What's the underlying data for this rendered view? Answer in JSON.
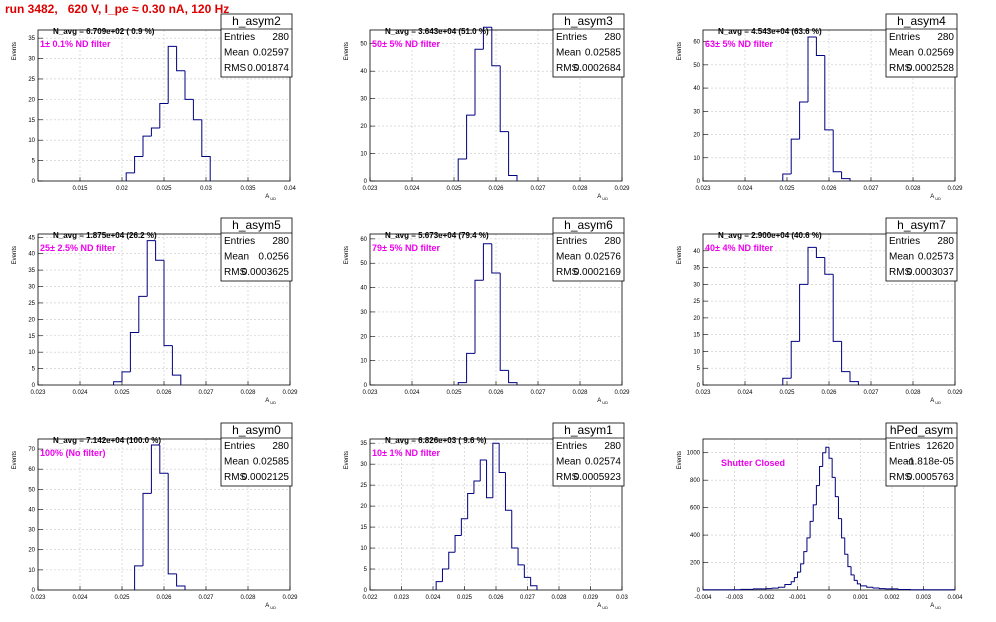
{
  "page_title": "run 3482,   620 V, I_pe ≈ 0.30 nA, 120 Hz",
  "colors": {
    "title": "#dd0000",
    "histogram": "#000080",
    "annotation": "#ee00ee",
    "grid": "#c8c8c8"
  },
  "chart_data": [
    {
      "type": "bar",
      "name": "h_asym2",
      "stats": {
        "entries": "280",
        "mean": "0.02597",
        "rms": "0.001874"
      },
      "navg": "N_avg = 6.709e+02 ( 0.9 %)",
      "filter": "1± 0.1% ND filter",
      "ylabel": "Events",
      "xlabel": "A_UD",
      "xlim": [
        0.01,
        0.04
      ],
      "ylim": [
        0,
        37
      ],
      "xticks": [
        "0.015",
        "0.02",
        "0.025",
        "0.03",
        "0.035",
        "0.04"
      ],
      "yticks": [
        "0",
        "5",
        "10",
        "15",
        "20",
        "25",
        "30",
        "35"
      ],
      "bin_edges": [
        0.0205,
        0.0215,
        0.0225,
        0.0235,
        0.0245,
        0.0255,
        0.0265,
        0.0275,
        0.0285,
        0.0295,
        0.0305
      ],
      "values": [
        2,
        6,
        11,
        13,
        19,
        33,
        27,
        20,
        15,
        6
      ]
    },
    {
      "type": "bar",
      "name": "h_asym3",
      "stats": {
        "entries": "280",
        "mean": "0.02585",
        "rms": "0.0002684"
      },
      "navg": "N_avg = 3.643e+04 (51.0 %)",
      "filter": "50± 5% ND filter",
      "ylabel": "Events",
      "xlabel": "A_UD",
      "xlim": [
        0.023,
        0.029
      ],
      "ylim": [
        0,
        55
      ],
      "xticks": [
        "0.023",
        "0.024",
        "0.025",
        "0.026",
        "0.027",
        "0.028",
        "0.029"
      ],
      "yticks": [
        "0",
        "10",
        "20",
        "30",
        "40",
        "50"
      ],
      "bin_edges": [
        0.0251,
        0.0253,
        0.0255,
        0.0257,
        0.0259,
        0.0261,
        0.0263,
        0.0265
      ],
      "values": [
        8,
        24,
        48,
        56,
        42,
        18,
        2
      ]
    },
    {
      "type": "bar",
      "name": "h_asym4",
      "stats": {
        "entries": "280",
        "mean": "0.02569",
        "rms": "0.0002528"
      },
      "navg": "N_avg = 4.543e+04 (63.6 %)",
      "filter": "63± 5% ND filter",
      "ylabel": "Events",
      "xlabel": "A_UD",
      "xlim": [
        0.023,
        0.029
      ],
      "ylim": [
        0,
        65
      ],
      "xticks": [
        "0.023",
        "0.024",
        "0.025",
        "0.026",
        "0.027",
        "0.028",
        "0.029"
      ],
      "yticks": [
        "0",
        "10",
        "20",
        "30",
        "40",
        "50",
        "60"
      ],
      "bin_edges": [
        0.0249,
        0.0251,
        0.0253,
        0.0255,
        0.0257,
        0.0259,
        0.0261,
        0.0263,
        0.0265
      ],
      "values": [
        3,
        18,
        34,
        62,
        54,
        22,
        4,
        1
      ]
    },
    {
      "type": "bar",
      "name": "h_asym5",
      "stats": {
        "entries": "280",
        "mean": "0.0256",
        "rms": "0.0003625"
      },
      "navg": "N_avg = 1.875e+04 (26.2 %)",
      "filter": "25± 2.5% ND filter",
      "ylabel": "Events",
      "xlabel": "A_UD",
      "xlim": [
        0.023,
        0.029
      ],
      "ylim": [
        0,
        46
      ],
      "xticks": [
        "0.023",
        "0.024",
        "0.025",
        "0.026",
        "0.027",
        "0.028",
        "0.029"
      ],
      "yticks": [
        "0",
        "5",
        "10",
        "15",
        "20",
        "25",
        "30",
        "35",
        "40",
        "45"
      ],
      "bin_edges": [
        0.0248,
        0.025,
        0.0252,
        0.0254,
        0.0256,
        0.0258,
        0.026,
        0.0262,
        0.0264
      ],
      "values": [
        1,
        4,
        16,
        27,
        44,
        38,
        12,
        3
      ]
    },
    {
      "type": "bar",
      "name": "h_asym6",
      "stats": {
        "entries": "280",
        "mean": "0.02576",
        "rms": "0.0002169"
      },
      "navg": "N_avg = 5.673e+04 (79.4 %)",
      "filter": "79± 5% ND filter",
      "ylabel": "Events",
      "xlabel": "A_UD",
      "xlim": [
        0.023,
        0.029
      ],
      "ylim": [
        0,
        62
      ],
      "xticks": [
        "0.023",
        "0.024",
        "0.025",
        "0.026",
        "0.027",
        "0.028",
        "0.029"
      ],
      "yticks": [
        "0",
        "10",
        "20",
        "30",
        "40",
        "50",
        "60"
      ],
      "bin_edges": [
        0.0251,
        0.0253,
        0.0255,
        0.0257,
        0.0259,
        0.0261,
        0.0263,
        0.0265
      ],
      "values": [
        1,
        13,
        43,
        58,
        46,
        6,
        1
      ]
    },
    {
      "type": "bar",
      "name": "h_asym7",
      "stats": {
        "entries": "280",
        "mean": "0.02573",
        "rms": "0.0003037"
      },
      "navg": "N_avg = 2.900e+04 (40.6 %)",
      "filter": "40± 4% ND filter",
      "ylabel": "Events",
      "xlabel": "A_UD",
      "xlim": [
        0.023,
        0.029
      ],
      "ylim": [
        0,
        45
      ],
      "xticks": [
        "0.023",
        "0.024",
        "0.025",
        "0.026",
        "0.027",
        "0.028",
        "0.029"
      ],
      "yticks": [
        "0",
        "5",
        "10",
        "15",
        "20",
        "25",
        "30",
        "35",
        "40"
      ],
      "bin_edges": [
        0.0249,
        0.0251,
        0.0253,
        0.0255,
        0.0257,
        0.0259,
        0.0261,
        0.0263,
        0.0265,
        0.0267
      ],
      "values": [
        2,
        13,
        30,
        41,
        38,
        33,
        13,
        4,
        1
      ]
    },
    {
      "type": "bar",
      "name": "h_asym0",
      "stats": {
        "entries": "280",
        "mean": "0.02585",
        "rms": "0.0002125"
      },
      "navg": "N_avg = 7.142e+04 (100.0 %)",
      "filter": "100% (No filter)",
      "ylabel": "Events",
      "xlabel": "A_UD",
      "xlim": [
        0.023,
        0.029
      ],
      "ylim": [
        0,
        75
      ],
      "xticks": [
        "0.023",
        "0.024",
        "0.025",
        "0.026",
        "0.027",
        "0.028",
        "0.029"
      ],
      "yticks": [
        "0",
        "10",
        "20",
        "30",
        "40",
        "50",
        "60",
        "70"
      ],
      "bin_edges": [
        0.0253,
        0.0255,
        0.0257,
        0.0259,
        0.0261,
        0.0263,
        0.0265
      ],
      "values": [
        12,
        48,
        72,
        58,
        8,
        2
      ]
    },
    {
      "type": "bar",
      "name": "h_asym1",
      "stats": {
        "entries": "280",
        "mean": "0.02574",
        "rms": "0.0005923"
      },
      "navg": "N_avg = 6.826e+03 ( 9.6 %)",
      "filter": "10± 1% ND filter",
      "ylabel": "Events",
      "xlabel": "A_UD",
      "xlim": [
        0.022,
        0.03
      ],
      "ylim": [
        0,
        36
      ],
      "xticks": [
        "0.022",
        "0.023",
        "0.024",
        "0.025",
        "0.026",
        "0.027",
        "0.028",
        "0.029",
        "0.03"
      ],
      "yticks": [
        "0",
        "5",
        "10",
        "15",
        "20",
        "25",
        "30",
        "35"
      ],
      "bin_edges": [
        0.0241,
        0.0243,
        0.0245,
        0.0247,
        0.0249,
        0.0251,
        0.0253,
        0.0255,
        0.0257,
        0.0259,
        0.0261,
        0.0263,
        0.0265,
        0.0267,
        0.0269,
        0.0271,
        0.0273
      ],
      "values": [
        2,
        5,
        9,
        13,
        17,
        23,
        26,
        31,
        22,
        35,
        28,
        19,
        10,
        6,
        3,
        1
      ]
    },
    {
      "type": "bar",
      "name": "hPed_asym",
      "stats": {
        "entries": "12620",
        "mean": "-1.818e-05",
        "rms": "0.0005763"
      },
      "navg": "",
      "filter": "Shutter Closed",
      "ylabel": "Events",
      "xlabel": "A_UD",
      "xlim": [
        -0.004,
        0.004
      ],
      "ylim": [
        0,
        1100
      ],
      "xticks": [
        "-0.004",
        "-0.003",
        "-0.002",
        "-0.001",
        "0",
        "0.001",
        "0.002",
        "0.003",
        "0.004"
      ],
      "yticks": [
        "0",
        "200",
        "400",
        "600",
        "800",
        "1000"
      ],
      "bin_edges": [
        -0.004,
        -0.0028,
        -0.0024,
        -0.002,
        -0.0018,
        -0.0016,
        -0.0014,
        -0.0012,
        -0.0011,
        -0.001,
        -0.0009,
        -0.0008,
        -0.0007,
        -0.0006,
        -0.0005,
        -0.0004,
        -0.0003,
        -0.0002,
        -0.0001,
        0,
        0.0001,
        0.0002,
        0.0003,
        0.0004,
        0.0005,
        0.0006,
        0.0007,
        0.0008,
        0.0009,
        0.001,
        0.0012,
        0.0014,
        0.0016,
        0.0018,
        0.0022,
        0.0026,
        0.004
      ],
      "values": [
        2,
        5,
        8,
        10,
        14,
        20,
        40,
        60,
        90,
        130,
        190,
        280,
        380,
        500,
        620,
        760,
        900,
        1000,
        1040,
        960,
        820,
        680,
        520,
        380,
        260,
        170,
        110,
        70,
        45,
        30,
        20,
        15,
        10,
        8,
        4,
        2
      ]
    }
  ]
}
